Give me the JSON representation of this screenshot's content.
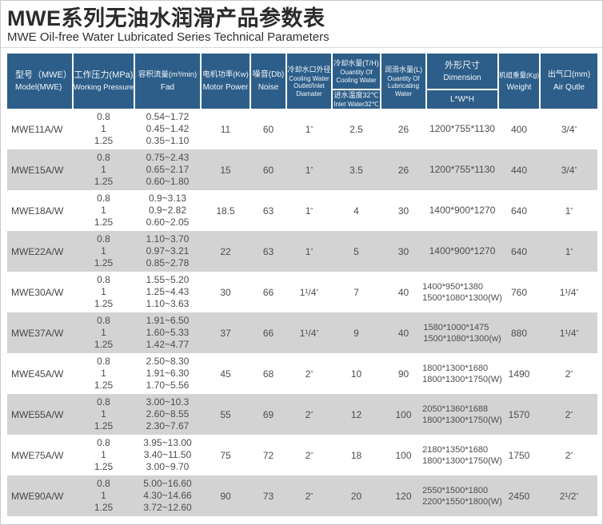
{
  "page": {
    "title": "MWE系列无油水润滑产品参数表",
    "subtitle": "MWE Oil-free Water Lubricated Series Technical Parameters"
  },
  "colors": {
    "header_bg": "#2d5e89",
    "stripe_bg": "#d3d3d3",
    "body_text": "#4d4d4d"
  },
  "table": {
    "headers": {
      "model": {
        "zh": "型号（MWE）",
        "en": "Model(MWE)"
      },
      "pressure": {
        "zh": "工作压力(MPa)",
        "en": "Working Pressure"
      },
      "fad": {
        "zh": "容积流量(m³/min)",
        "en": "Fad"
      },
      "motor_power": {
        "zh": "电机功率(Kw)",
        "en": "Motor Power"
      },
      "noise": {
        "zh": "噪音(Db)",
        "en": "Noise"
      },
      "cooling_outlet": {
        "zh": "冷却水口外径",
        "en": "Cooling Water Outlet/Inlet Diamater"
      },
      "cooling_water": {
        "zh": "冷却水量(T/H)",
        "en": "Ouantity Of Cooling Water",
        "sub_zh": "进水温度32℃",
        "sub_en": "Inlet Water32℃"
      },
      "lubricating_water": {
        "zh": "润滑水量(L)",
        "en": "Ouantity Of Lubricating Water"
      },
      "dimension": {
        "zh": "外形尺寸",
        "en": "Dimension",
        "sub": "L*W*H"
      },
      "weight": {
        "zh": "机组重量(Kg)",
        "en": "Weight"
      },
      "air_outlet": {
        "zh": "出气口(mm)",
        "en": "Air Qutle"
      }
    },
    "rows": [
      {
        "model": "MWE11A/W",
        "pressures": [
          "0.8",
          "1",
          "1.25"
        ],
        "fad": [
          "0.54~1.72",
          "0.45~1.42",
          "0.35~1.10"
        ],
        "motor_power": "11",
        "noise": "60",
        "cooling_outlet": "1″",
        "cooling_water": "2.5",
        "lubricating_water": "26",
        "dimension": [
          "1200*755*1130"
        ],
        "weight": "400",
        "air_outlet": "3/4″"
      },
      {
        "model": "MWE15A/W",
        "pressures": [
          "0.8",
          "1",
          "1.25"
        ],
        "fad": [
          "0.75~2.43",
          "0.65~2.17",
          "0.60~1.80"
        ],
        "motor_power": "15",
        "noise": "60",
        "cooling_outlet": "1″",
        "cooling_water": "3.5",
        "lubricating_water": "26",
        "dimension": [
          "1200*755*1130"
        ],
        "weight": "440",
        "air_outlet": "3/4″"
      },
      {
        "model": "MWE18A/W",
        "pressures": [
          "0.8",
          "1",
          "1.25"
        ],
        "fad": [
          "0.9~3.13",
          "0.9~2.82",
          "0.60~2.05"
        ],
        "motor_power": "18.5",
        "noise": "63",
        "cooling_outlet": "1″",
        "cooling_water": "4",
        "lubricating_water": "30",
        "dimension": [
          "1400*900*1270"
        ],
        "weight": "640",
        "air_outlet": "1″"
      },
      {
        "model": "MWE22A/W",
        "pressures": [
          "0.8",
          "1",
          "1.25"
        ],
        "fad": [
          "1.10~3.70",
          "0.97~3.21",
          "0.85~2.78"
        ],
        "motor_power": "22",
        "noise": "63",
        "cooling_outlet": "1″",
        "cooling_water": "5",
        "lubricating_water": "30",
        "dimension": [
          "1400*900*1270"
        ],
        "weight": "640",
        "air_outlet": "1″"
      },
      {
        "model": "MWE30A/W",
        "pressures": [
          "0.8",
          "1",
          "1.25"
        ],
        "fad": [
          "1.55~5.20",
          "1.25~4.43",
          "1.10~3.63"
        ],
        "motor_power": "30",
        "noise": "66",
        "cooling_outlet": "1¹/4″",
        "cooling_water": "7",
        "lubricating_water": "40",
        "dimension": [
          "1400*950*1380",
          "1500*1080*1300(W)"
        ],
        "weight": "760",
        "air_outlet": "1¹/4″"
      },
      {
        "model": "MWE37A/W",
        "pressures": [
          "0.8",
          "1",
          "1.25"
        ],
        "fad": [
          "1.91~6.50",
          "1.60~5.33",
          "1.42~4.77"
        ],
        "motor_power": "37",
        "noise": "66",
        "cooling_outlet": "1¹/4″",
        "cooling_water": "9",
        "lubricating_water": "40",
        "dimension": [
          "1580*1000*1475",
          "1500*1080*1300(w)"
        ],
        "weight": "880",
        "air_outlet": "1¹/4″"
      },
      {
        "model": "MWE45A/W",
        "pressures": [
          "0.8",
          "1",
          "1.25"
        ],
        "fad": [
          "2.50~8.30",
          "1.91~6.30",
          "1.70~5.56"
        ],
        "motor_power": "45",
        "noise": "68",
        "cooling_outlet": "2″",
        "cooling_water": "10",
        "lubricating_water": "90",
        "dimension": [
          "1800*1300*1680",
          "1800*1300*1750(W)"
        ],
        "weight": "1490",
        "air_outlet": "2″"
      },
      {
        "model": "MWE55A/W",
        "pressures": [
          "0.8",
          "1",
          "1.25"
        ],
        "fad": [
          "3.00~10.3",
          "2.60~8.55",
          "2.30~7.67"
        ],
        "motor_power": "55",
        "noise": "69",
        "cooling_outlet": "2″",
        "cooling_water": "12",
        "lubricating_water": "100",
        "dimension": [
          "2050*1360*1688",
          "1800*1300*1750(W)"
        ],
        "weight": "1570",
        "air_outlet": "2″"
      },
      {
        "model": "MWE75A/W",
        "pressures": [
          "0.8",
          "1",
          "1.25"
        ],
        "fad": [
          "3.95~13.00",
          "3.40~11.50",
          "3.00~9.70"
        ],
        "motor_power": "75",
        "noise": "72",
        "cooling_outlet": "2″",
        "cooling_water": "18",
        "lubricating_water": "100",
        "dimension": [
          "2180*1350*1680",
          "1800*1300*1750(W)"
        ],
        "weight": "1750",
        "air_outlet": "2″"
      },
      {
        "model": "MWE90A/W",
        "pressures": [
          "0.8",
          "1",
          "1.25"
        ],
        "fad": [
          "5.00~16.60",
          "4.30~14.66",
          "3.72~12.60"
        ],
        "motor_power": "90",
        "noise": "73",
        "cooling_outlet": "2″",
        "cooling_water": "20",
        "lubricating_water": "120",
        "dimension": [
          "2550*1500*1800",
          "2200*1550*1800(W)"
        ],
        "weight": "2450",
        "air_outlet": "2¹/2″"
      }
    ]
  }
}
